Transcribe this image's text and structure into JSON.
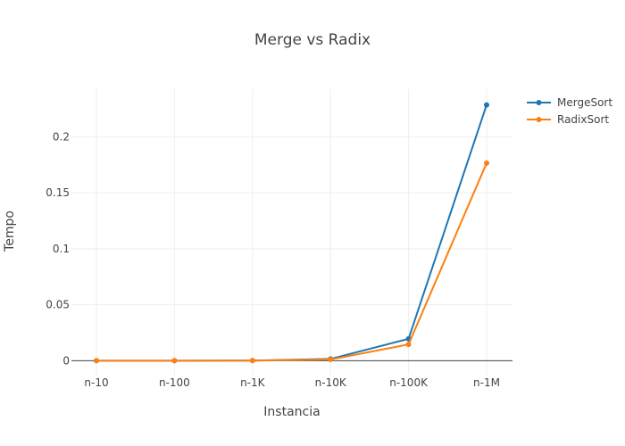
{
  "chart_data": {
    "type": "line",
    "title": "Merge vs Radix",
    "xlabel": "Instancia",
    "ylabel": "Tempo",
    "categories": [
      "n-10",
      "n-100",
      "n-1K",
      "n-10K",
      "n-100K",
      "n-1M"
    ],
    "y_ticks": [
      "0",
      "0.05",
      "0.1",
      "0.15",
      "0.2"
    ],
    "ylim": [
      -0.0125,
      0.2425
    ],
    "grid": true,
    "legend_position": "top-right",
    "series": [
      {
        "name": "MergeSort",
        "color": "#1f77b4",
        "values": [
          0.0,
          0.0,
          0.0001,
          0.0015,
          0.0195,
          0.2285
        ]
      },
      {
        "name": "RadixSort",
        "color": "#ff7f0e",
        "values": [
          0.0,
          0.0,
          0.0001,
          0.001,
          0.0145,
          0.1765
        ]
      }
    ]
  }
}
